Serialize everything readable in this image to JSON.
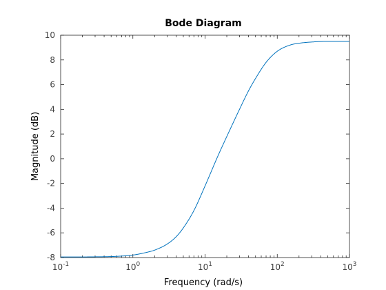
{
  "chart_data": {
    "type": "line",
    "title": "Bode Diagram",
    "xlabel": "Frequency  (rad/s)",
    "ylabel": "Magnitude (dB)",
    "xscale": "log",
    "xlim": [
      0.1,
      1000
    ],
    "ylim": [
      -8,
      10
    ],
    "grid": false,
    "x_ticks": [
      {
        "value": 0.1,
        "base": "10",
        "exp": "-1"
      },
      {
        "value": 1,
        "base": "10",
        "exp": "0"
      },
      {
        "value": 10,
        "base": "10",
        "exp": "1"
      },
      {
        "value": 100,
        "base": "10",
        "exp": "2"
      },
      {
        "value": 1000,
        "base": "10",
        "exp": "3"
      }
    ],
    "y_ticks": [
      -8,
      -6,
      -4,
      -2,
      0,
      2,
      4,
      6,
      8,
      10
    ],
    "line_color": "#0072bd",
    "series": [
      {
        "x": [
          0.1,
          0.2,
          0.3,
          0.5,
          0.7,
          1,
          1.5,
          2,
          3,
          4,
          5,
          7,
          10,
          15,
          20,
          30,
          40,
          50,
          70,
          100,
          150,
          200,
          300,
          500,
          700,
          1000
        ],
        "y": [
          -7.95,
          -7.95,
          -7.94,
          -7.92,
          -7.88,
          -7.8,
          -7.6,
          -7.4,
          -6.9,
          -6.3,
          -5.6,
          -4.2,
          -2.2,
          0.2,
          1.8,
          4.0,
          5.5,
          6.5,
          7.8,
          8.7,
          9.2,
          9.35,
          9.45,
          9.5,
          9.5,
          9.5
        ]
      }
    ]
  }
}
